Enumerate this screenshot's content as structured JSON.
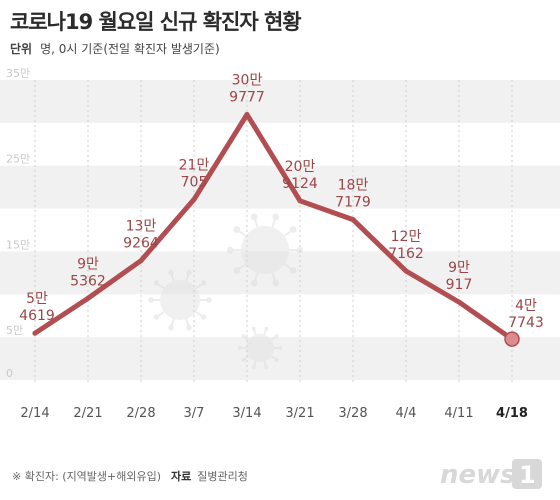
{
  "title": "코로나19 월요일 신규 확진자 현황",
  "unit_label": "단위",
  "unit_text": "명, 0시 기준(전일 확진자 발생기준)",
  "footnote": "※ 확진자: (지역발생+해외유입)",
  "source_label": "자료",
  "source_text": "질병관리청",
  "logo_text": "news1",
  "colors": {
    "line": "#b24e52",
    "band": "#f1f1f1",
    "last_point": "#d98b8d"
  },
  "chart_data": {
    "type": "line",
    "title": "코로나19 월요일 신규 확진자 현황",
    "xlabel": "",
    "ylabel": "",
    "categories": [
      "2/14",
      "2/21",
      "2/28",
      "3/7",
      "3/14",
      "3/21",
      "3/28",
      "4/4",
      "4/11",
      "4/18"
    ],
    "values": [
      54619,
      95362,
      139264,
      210705,
      309777,
      209124,
      187179,
      127162,
      90917,
      47743
    ],
    "data_labels": [
      [
        "5만",
        "4619"
      ],
      [
        "9만",
        "5362"
      ],
      [
        "13만",
        "9264"
      ],
      [
        "21만",
        "705"
      ],
      [
        "30만",
        "9777"
      ],
      [
        "20만",
        "9124"
      ],
      [
        "18만",
        "7179"
      ],
      [
        "12만",
        "7162"
      ],
      [
        "9만",
        "917"
      ],
      [
        "4만",
        "7743"
      ]
    ],
    "y_ticks": [
      {
        "value": 0,
        "label": "0"
      },
      {
        "value": 50000,
        "label": "5만"
      },
      {
        "value": 150000,
        "label": "15만"
      },
      {
        "value": 250000,
        "label": "25만"
      },
      {
        "value": 350000,
        "label": "35만"
      }
    ],
    "ylim": [
      0,
      350000
    ],
    "grid": "alternating bands",
    "highlight_last": true
  }
}
